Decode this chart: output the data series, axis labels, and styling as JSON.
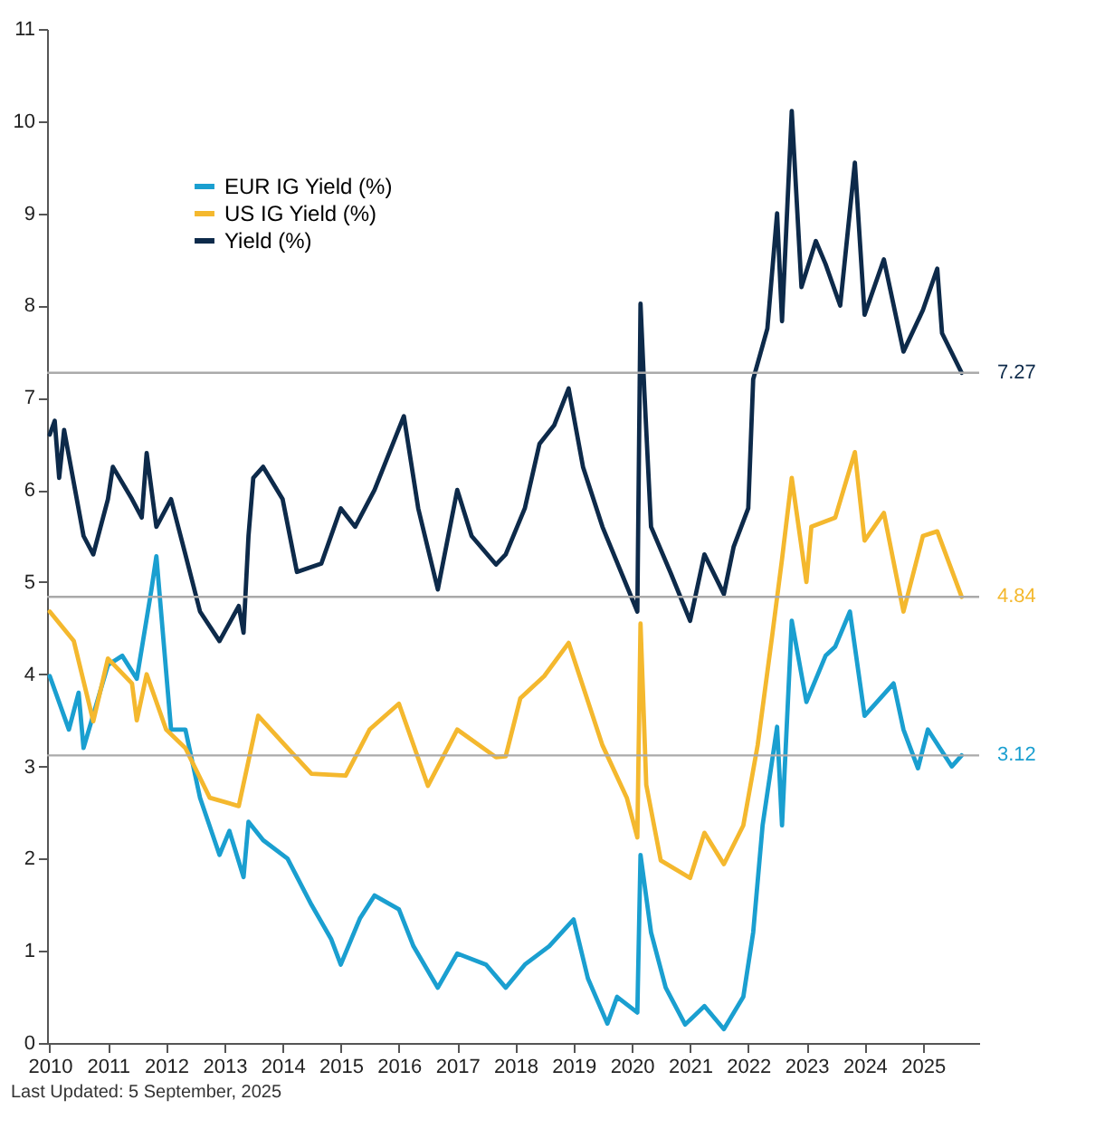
{
  "chart_data": {
    "type": "line",
    "legend": "top left",
    "marker": "none",
    "line_style": "solid",
    "grid": false,
    "annotations": [
      "Last Updated: 5 September, 2025"
    ],
    "xlim": [
      "2009-12-15",
      "2025-12-20"
    ],
    "xticks": [
      "2010",
      "2011",
      "2012",
      "2013",
      "2014",
      "2015",
      "2016",
      "2017",
      "2018",
      "2019",
      "2020",
      "2021",
      "2022",
      "2023",
      "2024",
      "2025"
    ],
    "ylim": [
      0,
      11
    ],
    "yticks": [
      0,
      1,
      2,
      3,
      4,
      5,
      6,
      7,
      8,
      9,
      10,
      11
    ],
    "ref_lines": [
      {
        "axis": "y",
        "value": 7.27,
        "label": "7.27",
        "color": "#aaaaaa"
      },
      {
        "axis": "y",
        "value": 4.84,
        "label": "4.84",
        "color": "#aaaaaa"
      },
      {
        "axis": "y",
        "value": 3.12,
        "label": "3.12",
        "color": "#aaaaaa"
      }
    ],
    "series": [
      {
        "name": "EUR IG Yield (%)",
        "color": "#1a9fd0",
        "x": [
          "2010-01",
          "2010-05",
          "2010-07",
          "2010-08",
          "2011-01",
          "2011-04",
          "2011-07",
          "2011-10",
          "2011-11",
          "2012-02",
          "2012-05",
          "2012-08",
          "2012-12",
          "2013-02",
          "2013-05",
          "2013-06",
          "2013-09",
          "2014-02",
          "2014-07",
          "2014-11",
          "2015-01",
          "2015-05",
          "2015-08",
          "2016-01",
          "2016-04",
          "2016-09",
          "2017-01",
          "2017-07",
          "2017-11",
          "2018-03",
          "2018-08",
          "2019-01",
          "2019-04",
          "2019-08",
          "2019-10",
          "2020-02-05",
          "2020-02-25",
          "2020-05",
          "2020-08",
          "2020-12",
          "2021-04",
          "2021-08",
          "2021-12",
          "2022-02",
          "2022-04",
          "2022-07",
          "2022-08",
          "2022-10",
          "2023-01",
          "2023-05",
          "2023-07",
          "2023-10",
          "2024-01",
          "2024-07",
          "2024-09",
          "2024-12",
          "2025-02",
          "2025-07",
          "2025-09"
        ],
        "values": [
          3.98,
          3.4,
          3.8,
          3.2,
          4.1,
          4.2,
          3.95,
          4.92,
          5.28,
          3.4,
          3.4,
          2.66,
          2.04,
          2.3,
          1.8,
          2.4,
          2.2,
          2.0,
          1.5,
          1.13,
          0.85,
          1.35,
          1.6,
          1.45,
          1.05,
          0.6,
          0.97,
          0.85,
          0.6,
          0.85,
          1.05,
          1.34,
          0.7,
          0.21,
          0.5,
          0.33,
          2.04,
          1.2,
          0.6,
          0.2,
          0.4,
          0.15,
          0.5,
          1.2,
          2.36,
          3.43,
          2.36,
          4.58,
          3.7,
          4.2,
          4.3,
          4.68,
          3.55,
          3.9,
          3.4,
          2.98,
          3.4,
          3.0,
          3.12
        ]
      },
      {
        "name": "US IG Yield (%)",
        "color": "#f4b82e",
        "x": [
          "2010-01",
          "2010-06",
          "2010-10",
          "2011-01",
          "2011-06",
          "2011-07",
          "2011-09",
          "2012-01",
          "2012-05",
          "2012-10",
          "2013-04",
          "2013-08",
          "2014-02",
          "2014-07",
          "2015-02",
          "2015-07",
          "2016-01",
          "2016-07",
          "2017-01",
          "2017-09",
          "2017-11",
          "2018-02",
          "2018-07",
          "2018-12",
          "2019-07",
          "2019-12",
          "2020-02-05",
          "2020-02-25",
          "2020-04",
          "2020-07",
          "2021-01",
          "2021-04",
          "2021-08",
          "2021-12",
          "2022-03",
          "2022-06",
          "2022-08",
          "2022-10",
          "2023-01",
          "2023-02",
          "2023-07",
          "2023-11",
          "2024-01",
          "2024-05",
          "2024-09",
          "2025-01",
          "2025-04",
          "2025-09"
        ],
        "values": [
          4.68,
          4.36,
          3.49,
          4.17,
          3.9,
          3.5,
          4.0,
          3.4,
          3.2,
          2.66,
          2.57,
          3.55,
          3.2,
          2.92,
          2.9,
          3.4,
          3.68,
          2.79,
          3.4,
          3.1,
          3.11,
          3.74,
          3.98,
          4.34,
          3.23,
          2.66,
          2.23,
          4.55,
          2.8,
          1.98,
          1.79,
          2.28,
          1.94,
          2.36,
          3.23,
          4.43,
          5.25,
          6.13,
          5.0,
          5.6,
          5.7,
          6.41,
          5.45,
          5.75,
          4.68,
          5.5,
          5.55,
          4.84
        ]
      },
      {
        "name": "Yield (%)",
        "color": "#0d2a4a",
        "x": [
          "2010-01",
          "2010-02",
          "2010-03",
          "2010-04",
          "2010-08",
          "2010-10",
          "2011-01",
          "2011-02",
          "2011-06",
          "2011-08",
          "2011-09",
          "2011-11",
          "2012-02",
          "2012-05",
          "2012-08",
          "2012-12",
          "2013-04",
          "2013-05",
          "2013-06",
          "2013-07",
          "2013-09",
          "2014-01",
          "2014-04",
          "2014-09",
          "2015-01",
          "2015-04",
          "2015-08",
          "2016-02",
          "2016-05",
          "2016-09",
          "2017-01",
          "2017-04",
          "2017-09",
          "2017-11",
          "2018-03",
          "2018-06",
          "2018-09",
          "2018-12",
          "2019-03",
          "2019-07",
          "2020-02-05",
          "2020-02-25",
          "2020-03-20",
          "2020-05",
          "2020-09",
          "2021-01",
          "2021-04",
          "2021-08",
          "2021-10",
          "2022-01",
          "2022-02",
          "2022-05",
          "2022-07",
          "2022-08",
          "2022-10",
          "2022-12",
          "2023-03",
          "2023-05",
          "2023-08",
          "2023-11",
          "2024-01",
          "2024-05",
          "2024-09",
          "2025-01",
          "2025-04",
          "2025-05",
          "2025-09"
        ],
        "values": [
          6.6,
          6.75,
          6.13,
          6.65,
          5.5,
          5.3,
          5.9,
          6.25,
          5.9,
          5.7,
          6.4,
          5.6,
          5.9,
          5.3,
          4.68,
          4.36,
          4.74,
          4.45,
          5.5,
          6.13,
          6.25,
          5.9,
          5.11,
          5.2,
          5.8,
          5.6,
          6.0,
          6.8,
          5.8,
          4.92,
          6.0,
          5.5,
          5.19,
          5.3,
          5.8,
          6.5,
          6.7,
          7.1,
          6.25,
          5.6,
          4.68,
          8.02,
          7.07,
          5.6,
          5.1,
          4.58,
          5.3,
          4.87,
          5.38,
          5.8,
          7.2,
          7.75,
          9.0,
          7.83,
          10.11,
          8.2,
          8.7,
          8.45,
          8.0,
          9.55,
          7.9,
          8.5,
          7.5,
          7.95,
          8.4,
          7.7,
          7.27
        ]
      }
    ]
  }
}
